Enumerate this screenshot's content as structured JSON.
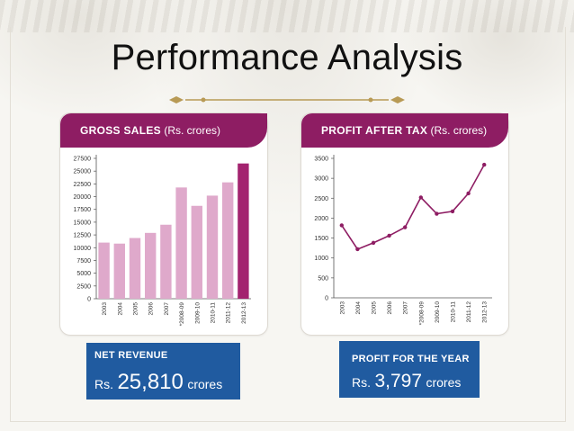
{
  "slide": {
    "title": "Performance Analysis"
  },
  "colors": {
    "accent": "#8e1d63",
    "bar_light": "#dfa9cb",
    "bar_highlight": "#a3236f",
    "stat_box": "#205ba0",
    "divider": "#b89a55"
  },
  "stats": [
    {
      "label": "NET REVENUE",
      "prefix": "Rs.",
      "value": "25,810",
      "unit": "crores"
    },
    {
      "label": "PROFIT FOR THE YEAR",
      "prefix": "Rs.",
      "value": "3,797",
      "unit": "crores"
    }
  ],
  "chart_data": [
    {
      "type": "bar",
      "title": "GROSS SALES",
      "unit_label": "(Rs. crores)",
      "categories": [
        "2003",
        "2004",
        "2005",
        "2006",
        "2007",
        "*2008-09",
        "2009-10",
        "2010-11",
        "2011-12",
        "2012-13"
      ],
      "values": [
        11000,
        10800,
        11900,
        12900,
        14500,
        21800,
        18200,
        20200,
        22800,
        26500
      ],
      "yticks": [
        0,
        2500,
        5000,
        7500,
        10000,
        12500,
        15000,
        17500,
        20000,
        22500,
        25000,
        27500
      ],
      "ylim": [
        0,
        27500
      ],
      "highlight_index": 9,
      "grid": false
    },
    {
      "type": "line",
      "title": "PROFIT AFTER TAX",
      "unit_label": "(Rs. crores)",
      "categories": [
        "2003",
        "2004",
        "2005",
        "2006",
        "2007",
        "*2008-09",
        "2009-10",
        "2010-11",
        "2011-12",
        "2012-13"
      ],
      "values": [
        1820,
        1220,
        1380,
        1560,
        1770,
        2520,
        2110,
        2170,
        2620,
        3340
      ],
      "yticks": [
        0,
        500,
        1000,
        1500,
        2000,
        2500,
        3000,
        3500
      ],
      "ylim": [
        0,
        3500
      ],
      "grid": false
    }
  ]
}
